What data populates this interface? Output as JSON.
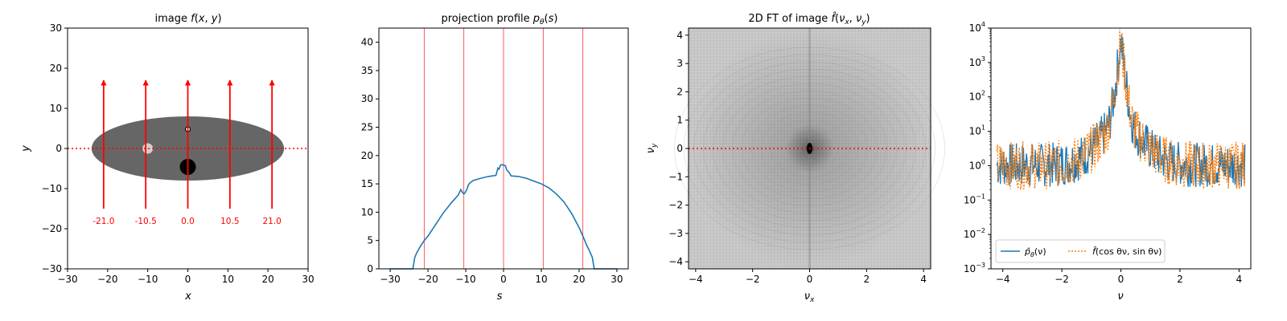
{
  "colors": {
    "red": "#ff0000",
    "blue": "#1f77b4",
    "orange": "#ff7f0e",
    "ellipse": "#666666",
    "light_circle": "#d0d0d0",
    "dark_circle": "#000000"
  },
  "chart_data": [
    {
      "type": "scatter",
      "title": "image f(x, y)",
      "title_parts": [
        "image ",
        "f",
        "(",
        "x",
        ", ",
        "y",
        ")"
      ],
      "xlabel": "x",
      "ylabel": "y",
      "xlim": [
        -30,
        30
      ],
      "ylim": [
        -30,
        30
      ],
      "xticks": [
        -30,
        -20,
        -10,
        0,
        10,
        20,
        30
      ],
      "yticks": [
        -30,
        -20,
        -10,
        0,
        10,
        20,
        30
      ],
      "shapes": {
        "ellipse": {
          "cx": 0,
          "cy": 0,
          "rx": 24,
          "ry": 8
        },
        "circles": [
          {
            "cx": 0,
            "cy": 4.8,
            "r": 0.6,
            "fill": "white"
          },
          {
            "cx": -10,
            "cy": 0,
            "r": 1.3,
            "fill": "light"
          },
          {
            "cx": 0,
            "cy": -4.6,
            "r": 2.0,
            "fill": "dark"
          }
        ]
      },
      "rays": [
        {
          "s": -21.0,
          "label": "-21.0"
        },
        {
          "s": -10.5,
          "label": "-10.5"
        },
        {
          "s": 0.0,
          "label": "0.0"
        },
        {
          "s": 10.5,
          "label": "10.5"
        },
        {
          "s": 21.0,
          "label": "21.0"
        }
      ],
      "ray_y_start": -15,
      "ray_y_end": 17,
      "ray_label_y": -18,
      "hline_y": 0
    },
    {
      "type": "line",
      "title": "projection profile p_θ(s)",
      "title_parts": [
        "projection profile ",
        "p",
        "θ",
        "(",
        "s",
        ")"
      ],
      "xlabel": "s",
      "ylabel": "",
      "xlim": [
        -33,
        33
      ],
      "ylim": [
        0,
        42.5
      ],
      "xticks": [
        -30,
        -20,
        -10,
        0,
        10,
        20,
        30
      ],
      "yticks": [
        0,
        5,
        10,
        15,
        20,
        25,
        30,
        35,
        40
      ],
      "vlines": [
        -21.0,
        -10.5,
        0.0,
        10.5,
        21.0
      ],
      "series": [
        {
          "x": [
            -30,
            -24,
            -23.5,
            -23,
            -22,
            -21,
            -20,
            -18,
            -16,
            -14,
            -12,
            -11.3,
            -10.8,
            -10.5,
            -10.2,
            -9.7,
            -9.3,
            -9,
            -8,
            -6,
            -4,
            -2,
            -1.5,
            -1.2,
            -0.8,
            -0.5,
            0,
            0.5,
            0.8,
            1.2,
            1.5,
            2,
            4,
            6,
            8,
            10,
            12,
            14,
            16,
            18,
            20,
            21,
            22,
            23,
            23.5,
            24,
            30
          ],
          "y": [
            0,
            0,
            2.0,
            2.8,
            4.0,
            5.0,
            5.8,
            7.8,
            9.8,
            11.5,
            13.0,
            14.0,
            13.4,
            13.2,
            13.4,
            14.0,
            14.8,
            15.1,
            15.6,
            16.0,
            16.3,
            16.5,
            17.8,
            17.6,
            18.3,
            18.4,
            18.3,
            18.2,
            17.5,
            17.2,
            17.0,
            16.4,
            16.3,
            16.0,
            15.5,
            15.0,
            14.3,
            13.2,
            11.8,
            9.8,
            7.3,
            5.8,
            4.2,
            2.8,
            2.0,
            0,
            0
          ]
        }
      ]
    },
    {
      "type": "heatmap",
      "title": "2D FT of image f̂(ν_x, ν_y)",
      "title_parts": [
        "2D FT of image ",
        "f̂",
        "(",
        "ν",
        "x",
        ", ",
        "ν",
        "y",
        ")"
      ],
      "xlabel": "ν_x",
      "ylabel": "ν_y",
      "xlabel_parts": [
        "ν",
        "x"
      ],
      "ylabel_parts": [
        "ν",
        "y"
      ],
      "xlim": [
        -4.25,
        4.25
      ],
      "ylim": [
        -4.25,
        4.25
      ],
      "xticks": [
        -4,
        -2,
        0,
        2,
        4
      ],
      "yticks": [
        -4,
        -3,
        -2,
        -1,
        0,
        1,
        2,
        3,
        4
      ],
      "hline_y": 0
    },
    {
      "type": "line",
      "title": "",
      "xlabel": "ν",
      "ylabel": "",
      "yscale": "log",
      "xlim": [
        -4.4,
        4.4
      ],
      "ylim": [
        0.001,
        10000
      ],
      "xticks": [
        -4,
        -2,
        0,
        2,
        4
      ],
      "yticks_exp": [
        -3,
        -2,
        -1,
        0,
        1,
        2,
        3,
        4
      ],
      "legend": {
        "placement": "lower-left",
        "entries": [
          {
            "label": "p̂_θ(ν)",
            "parts": [
              "p̂",
              "θ",
              "(ν)"
            ],
            "style": "solid",
            "color": "blue"
          },
          {
            "label": "f̂(cos θ ν, sin θ ν)",
            "parts": [
              "f̂",
              "(cos θν, sin θν)"
            ],
            "style": "dotted",
            "color": "orange"
          }
        ]
      },
      "series": [
        {
          "name": "p̂_θ(ν)",
          "peak": 5000,
          "x_range": [
            -4.2,
            4.2
          ]
        },
        {
          "name": "f̂(cos θ ν, sin θ ν)",
          "peak": 5000,
          "x_range": [
            -4.2,
            4.2
          ]
        }
      ]
    }
  ]
}
